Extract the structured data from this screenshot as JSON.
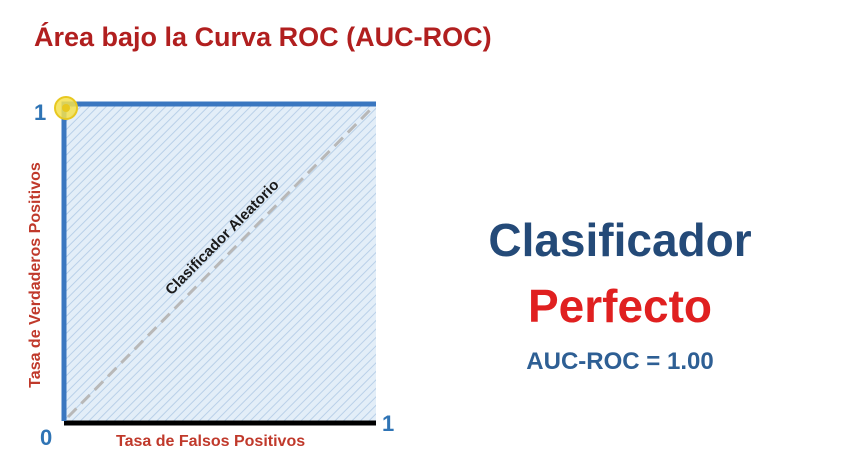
{
  "title": "Área bajo la Curva ROC (AUC-ROC)",
  "chart_data": {
    "type": "line",
    "title": "",
    "xlabel": "Tasa de Falsos Positivos",
    "ylabel": "Tasa de Verdaderos Positivos",
    "xlim": [
      0,
      1
    ],
    "ylim": [
      0,
      1
    ],
    "x_ticks": [
      "0",
      "1"
    ],
    "y_ticks": [
      "1"
    ],
    "grid": false,
    "series": [
      {
        "values": [
          [
            0,
            0
          ],
          [
            0,
            1
          ],
          [
            1,
            1
          ]
        ],
        "color": "#3a77c0",
        "area_fill": true
      },
      {
        "name": "Clasificador Aleatorio",
        "values": [
          [
            0,
            0
          ],
          [
            1,
            1
          ]
        ],
        "color": "#b8b8b8",
        "dashed": true
      }
    ],
    "highlight_point": [
      0,
      1
    ],
    "highlight_color": "#f2dc3a"
  },
  "panel": {
    "line1": "Clasificador",
    "line2": "Perfecto",
    "metric": "AUC-ROC = 1.00"
  }
}
